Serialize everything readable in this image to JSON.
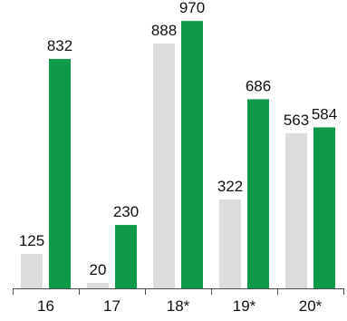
{
  "chart_data": {
    "type": "bar",
    "categories": [
      "16",
      "17",
      "18*",
      "19*",
      "20*"
    ],
    "series": [
      {
        "values": [
          125,
          20,
          888,
          322,
          563
        ],
        "color": "#dcdcdc"
      },
      {
        "values": [
          832,
          230,
          970,
          686,
          584
        ],
        "color": "#0f9a4a"
      }
    ],
    "ylim": [
      0,
      1000
    ],
    "grid": false,
    "legend": "none",
    "title": "",
    "xlabel": "",
    "ylabel": ""
  },
  "colors": {
    "axis": "#4d4d4d",
    "text": "#111111"
  }
}
